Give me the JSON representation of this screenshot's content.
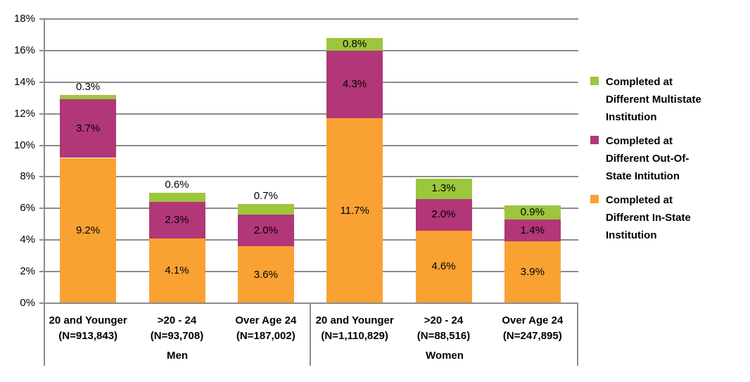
{
  "chart_data": {
    "type": "bar",
    "stacked": true,
    "title": "",
    "xlabel": "",
    "ylabel": "",
    "ylim": [
      0,
      18
    ],
    "ytick_step": 2,
    "yticklabels": [
      "0%",
      "2%",
      "4%",
      "6%",
      "8%",
      "10%",
      "12%",
      "14%",
      "16%",
      "18%"
    ],
    "grid": true,
    "legend_position": "right",
    "group_labels": [
      "Men",
      "Women"
    ],
    "categories": [
      {
        "label": "20 and Younger",
        "sublabel": "(N=913,843)",
        "group": "Men"
      },
      {
        "label": ">20 - 24",
        "sublabel": "(N=93,708)",
        "group": "Men"
      },
      {
        "label": "Over Age 24",
        "sublabel": "(N=187,002)",
        "group": "Men"
      },
      {
        "label": "20 and Younger",
        "sublabel": "(N=1,110,829)",
        "group": "Women"
      },
      {
        "label": ">20 - 24",
        "sublabel": "(N=88,516)",
        "group": "Women"
      },
      {
        "label": "Over Age 24",
        "sublabel": "(N=247,895)",
        "group": "Women"
      }
    ],
    "series": [
      {
        "name": "Completed at Different In-State Institution",
        "legend_lines": [
          "Completed at",
          "Different In-State",
          "Institution"
        ],
        "color": "#F9A233",
        "values": [
          9.2,
          4.1,
          3.6,
          11.7,
          4.6,
          3.9
        ],
        "labels": [
          "9.2%",
          "4.1%",
          "3.6%",
          "11.7%",
          "4.6%",
          "3.9%"
        ]
      },
      {
        "name": "Completed at Different Out-Of-State Intitution",
        "legend_lines": [
          "Completed at",
          "Different Out-Of-",
          "State Intitution"
        ],
        "color": "#B13778",
        "values": [
          3.7,
          2.3,
          2.0,
          4.3,
          2.0,
          1.4
        ],
        "labels": [
          "3.7%",
          "2.3%",
          "2.0%",
          "4.3%",
          "2.0%",
          "1.4%"
        ]
      },
      {
        "name": "Completed at Different Multistate Institution",
        "legend_lines": [
          "Completed at",
          "Different Multistate",
          "Institution"
        ],
        "color": "#9CC63D",
        "values": [
          0.3,
          0.6,
          0.7,
          0.8,
          1.3,
          0.9
        ],
        "labels": [
          "0.3%",
          "0.6%",
          "0.7%",
          "0.8%",
          "1.3%",
          "0.9%"
        ]
      }
    ],
    "legend_order": [
      2,
      1,
      0
    ],
    "colors": {
      "gridline": "#8C8C8C",
      "axis": "#8C8C8C",
      "text": "#000000"
    }
  }
}
